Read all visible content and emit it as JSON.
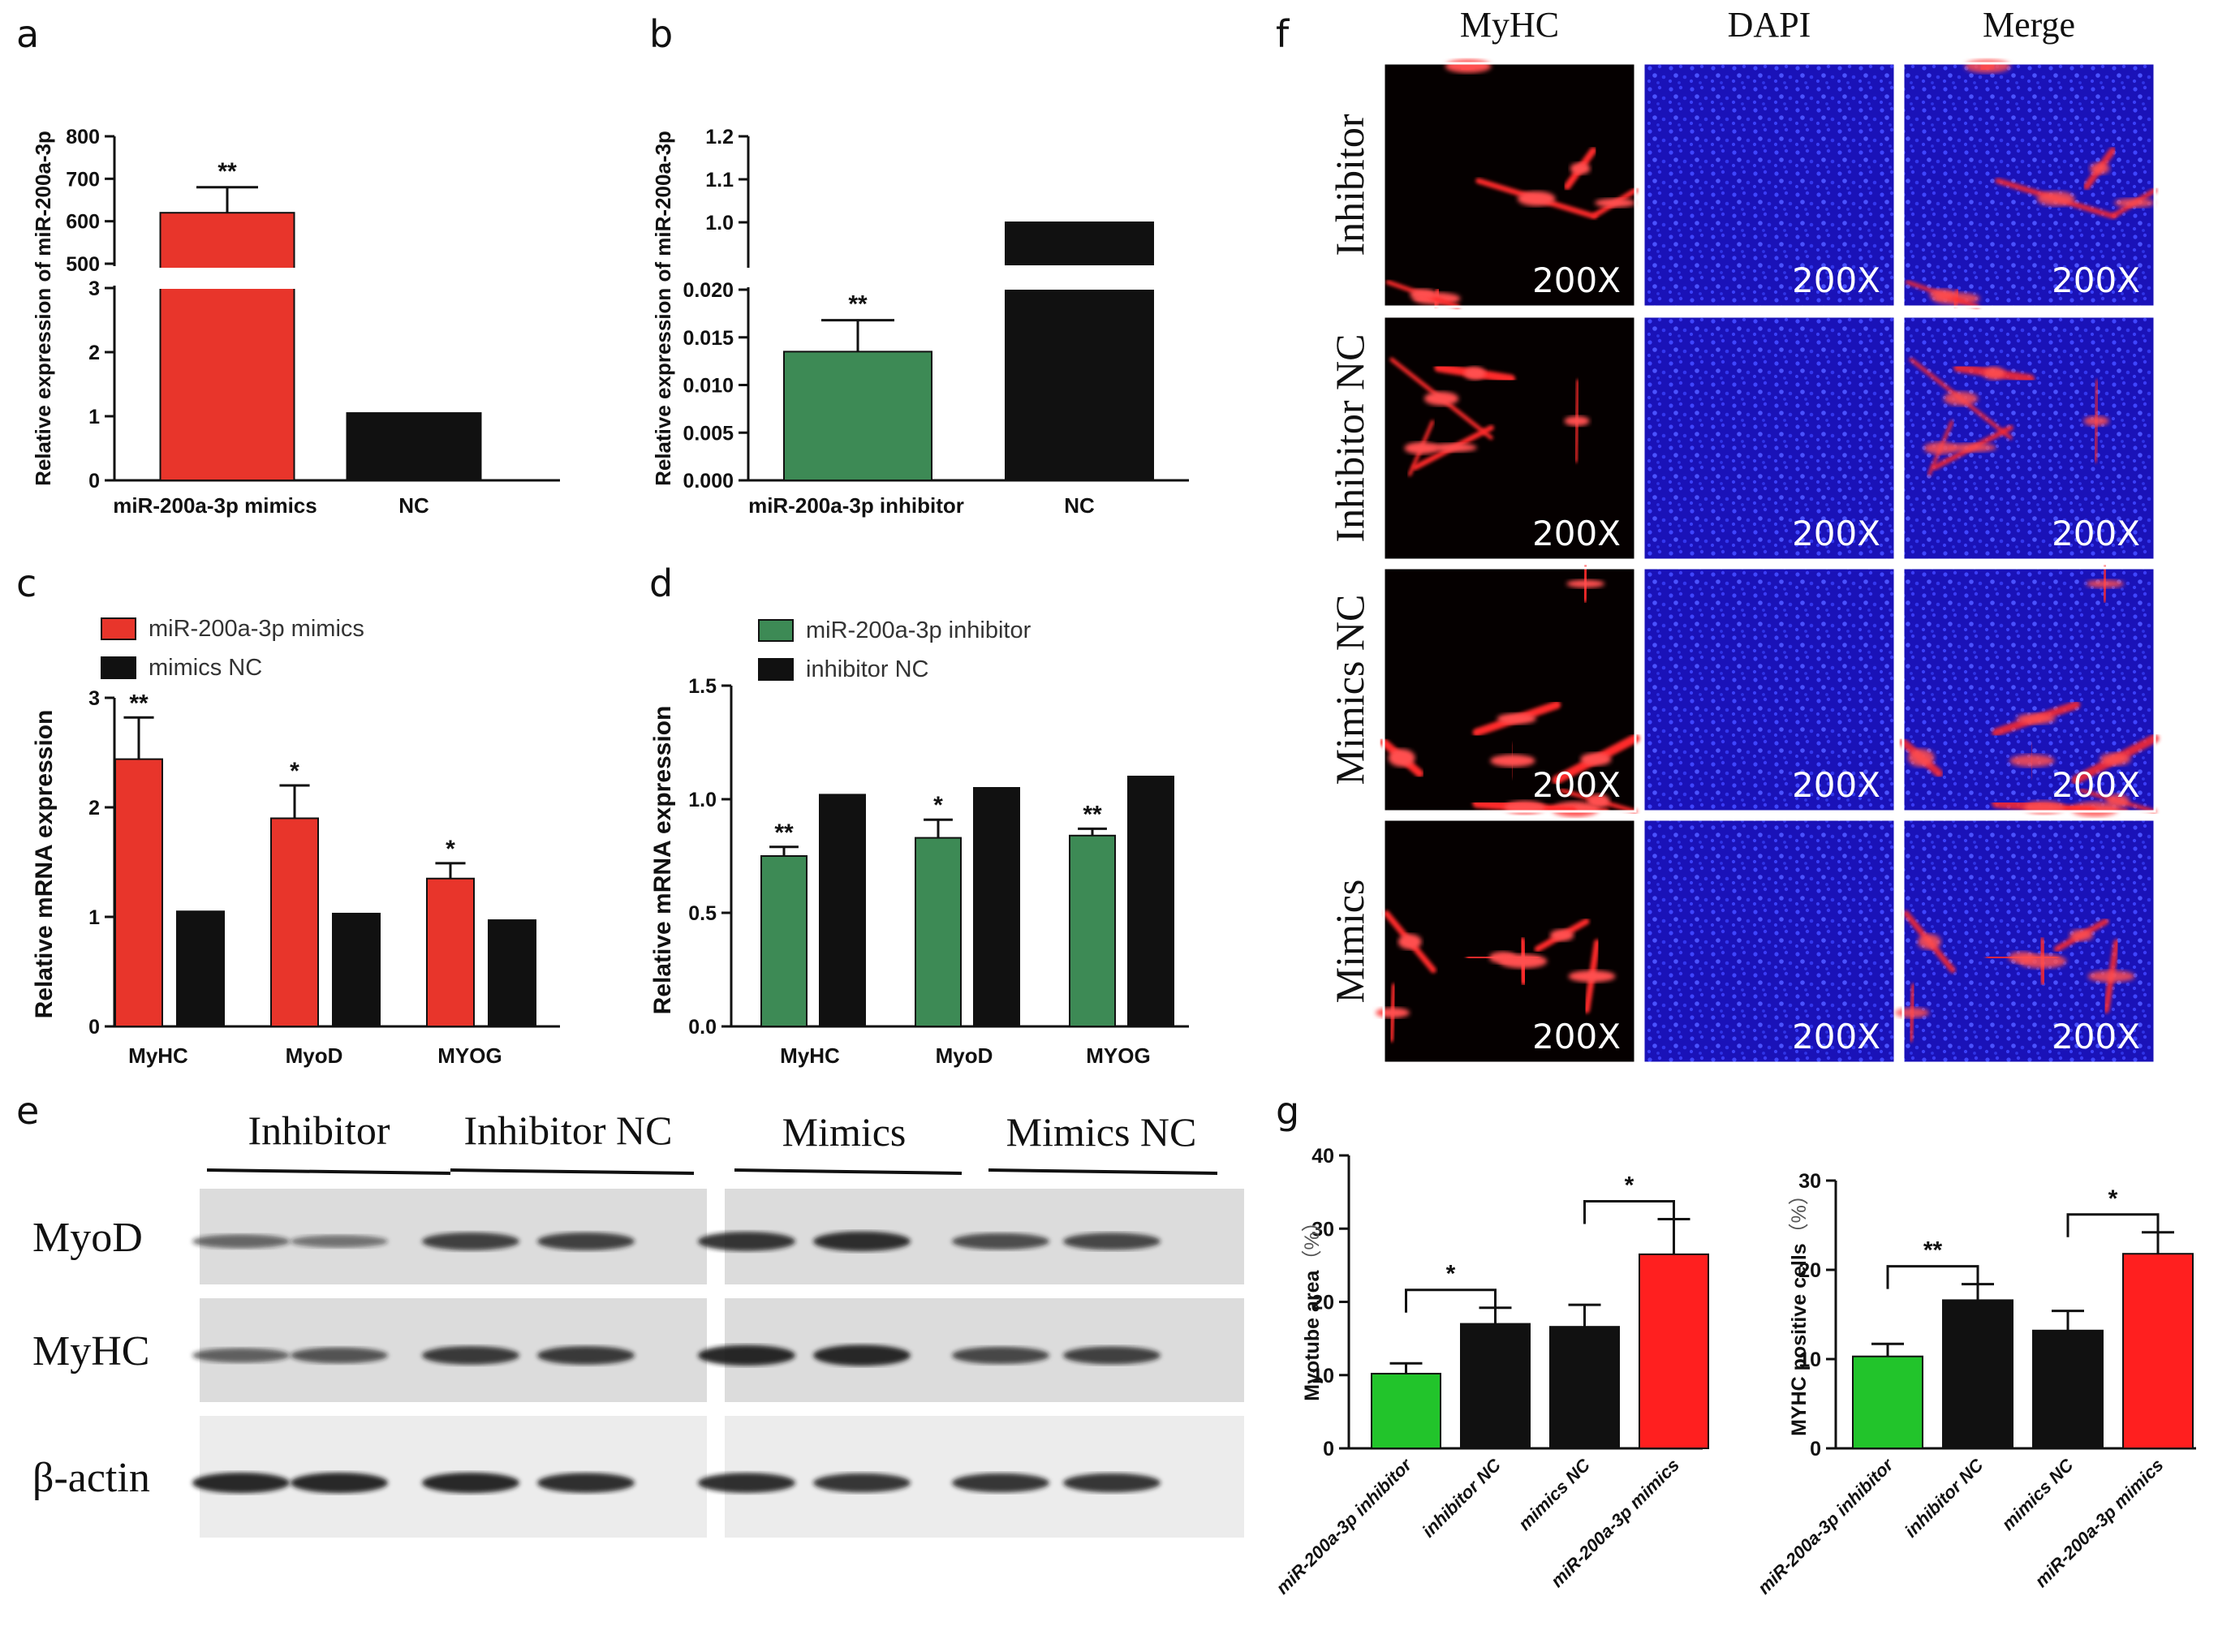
{
  "panel_letters": [
    "a",
    "b",
    "c",
    "d",
    "e",
    "f",
    "g"
  ],
  "colors": {
    "red": "#e8352b",
    "black": "#111111",
    "green_dark": "#3d8a55",
    "green_bright": "#22c42b",
    "bright_red": "#ff1f1f"
  },
  "chart_data": [
    {
      "panel": "a",
      "type": "bar",
      "categories": [
        "miR-200a-3p mimics",
        "NC"
      ],
      "values": [
        620,
        1.05
      ],
      "errors": [
        60,
        0
      ],
      "significance": [
        "**",
        ""
      ],
      "bar_colors": [
        "#e8352b",
        "#111111"
      ],
      "xlabel": "",
      "ylabel": "Relative expression of miR-200a-3p",
      "broken_axis": true,
      "lower_segment": {
        "ylim": [
          0,
          3
        ],
        "ticks": [
          0,
          1,
          2,
          3
        ]
      },
      "upper_segment": {
        "ylim": [
          500,
          800
        ],
        "ticks": [
          500,
          600,
          700,
          800
        ]
      }
    },
    {
      "panel": "b",
      "type": "bar",
      "categories": [
        "miR-200a-3p inhibitor",
        "NC"
      ],
      "values": [
        0.0135,
        1.0
      ],
      "errors": [
        0.0033,
        0
      ],
      "significance": [
        "**",
        ""
      ],
      "bar_colors": [
        "#3d8a55",
        "#111111"
      ],
      "xlabel": "",
      "ylabel": "Relative expression of miR-200a-3p",
      "broken_axis": true,
      "lower_segment": {
        "ylim": [
          0,
          0.02
        ],
        "ticks": [
          "0.000",
          "0.005",
          "0.010",
          "0.015",
          "0.020"
        ]
      },
      "upper_segment": {
        "ylim": [
          0.9,
          1.2
        ],
        "ticks": [
          "1.0",
          "1.1",
          "1.2"
        ]
      }
    },
    {
      "panel": "c",
      "type": "bar",
      "categories": [
        "MyHC",
        "MyoD",
        "MYOG"
      ],
      "series": [
        {
          "name": "miR-200a-3p mimics",
          "values": [
            2.44,
            1.9,
            1.35
          ],
          "errors": [
            0.38,
            0.3,
            0.14
          ],
          "significance": [
            "**",
            "*",
            "*"
          ],
          "color": "#e8352b"
        },
        {
          "name": "mimics NC",
          "values": [
            1.05,
            1.03,
            0.97
          ],
          "color": "#111111"
        }
      ],
      "ylim": [
        0,
        3
      ],
      "yticks": [
        0,
        1,
        2,
        3
      ],
      "ylabel": "Relative mRNA expression",
      "xlabel": "",
      "legend": "top-left"
    },
    {
      "panel": "d",
      "type": "bar",
      "categories": [
        "MyHC",
        "MyoD",
        "MYOG"
      ],
      "series": [
        {
          "name": "miR-200a-3p inhibitor",
          "values": [
            0.75,
            0.83,
            0.84
          ],
          "errors": [
            0.04,
            0.08,
            0.03
          ],
          "significance": [
            "**",
            "*",
            "**"
          ],
          "color": "#3d8a55"
        },
        {
          "name": "inhibitor NC",
          "values": [
            1.02,
            1.05,
            1.1
          ],
          "color": "#111111"
        }
      ],
      "ylim": [
        0,
        1.5
      ],
      "yticks": [
        "0.0",
        "0.5",
        "1.0",
        "1.5"
      ],
      "ylabel": "Relative mRNA expression",
      "xlabel": "",
      "legend": "top-left"
    },
    {
      "panel": "g",
      "type": "bar",
      "categories": [
        "miR-200a-3p inhibitor",
        "inhibitor NC",
        "mimics NC",
        "miR-200a-3p mimics"
      ],
      "values": [
        10.2,
        17.0,
        16.6,
        26.5
      ],
      "errors": [
        1.4,
        2.2,
        3.0,
        4.8
      ],
      "bar_colors": [
        "#22c42b",
        "#111111",
        "#111111",
        "#ff1f1f"
      ],
      "brackets": [
        {
          "from": 0,
          "to": 1,
          "label": "*"
        },
        {
          "from": 2,
          "to": 3,
          "label": "*"
        }
      ],
      "ylim": [
        0,
        40
      ],
      "yticks": [
        0,
        10,
        20,
        30,
        40
      ],
      "ylabel": "Myotube area",
      "yunit": "（%）"
    },
    {
      "panel": "g",
      "type": "bar",
      "categories": [
        "miR-200a-3p inhibitor",
        "inhibitor NC",
        "mimics NC",
        "miR-200a-3p mimics"
      ],
      "values": [
        10.3,
        16.6,
        13.2,
        21.8
      ],
      "errors": [
        1.4,
        1.8,
        2.2,
        2.4
      ],
      "bar_colors": [
        "#22c42b",
        "#111111",
        "#111111",
        "#ff1f1f"
      ],
      "brackets": [
        {
          "from": 0,
          "to": 1,
          "label": "**"
        },
        {
          "from": 2,
          "to": 3,
          "label": "*"
        }
      ],
      "ylim": [
        0,
        30
      ],
      "yticks": [
        0,
        10,
        20,
        30
      ],
      "ylabel": "MYHC positive cells",
      "yunit": "（%）"
    }
  ],
  "panels": {
    "a": {
      "ylabel": "Relative expression of miR-200a-3p"
    },
    "b": {
      "ylabel": "Relative expression of miR-200a-3p"
    },
    "c": {
      "ylabel": "Relative mRNA expression"
    },
    "d": {
      "ylabel": "Relative mRNA expression"
    },
    "e": {
      "groups": [
        "Inhibitor",
        "Inhibitor NC",
        "Mimics",
        "Mimics NC"
      ],
      "proteins": [
        {
          "name": "MyoD",
          "intensity": [
            0.45,
            0.35,
            0.75,
            0.75,
            0.85,
            0.9,
            0.65,
            0.7
          ]
        },
        {
          "name": "MyHC",
          "intensity": [
            0.5,
            0.6,
            0.8,
            0.8,
            0.95,
            1.0,
            0.7,
            0.75
          ]
        },
        {
          "name": "β-actin",
          "intensity": [
            0.95,
            0.95,
            0.95,
            0.9,
            0.9,
            0.85,
            0.85,
            0.85
          ]
        }
      ]
    },
    "f": {
      "columns": [
        "MyHC",
        "DAPI",
        "Merge"
      ],
      "rows": [
        "Inhibitor",
        "Inhibitor NC",
        "Mimics NC",
        "Mimics"
      ],
      "magnification": "200X"
    },
    "g": {
      "charts": [
        {
          "ylabel": "Myotube area",
          "yunit": "（%）"
        },
        {
          "ylabel": "MYHC positive cells",
          "yunit": "（%）"
        }
      ]
    }
  }
}
